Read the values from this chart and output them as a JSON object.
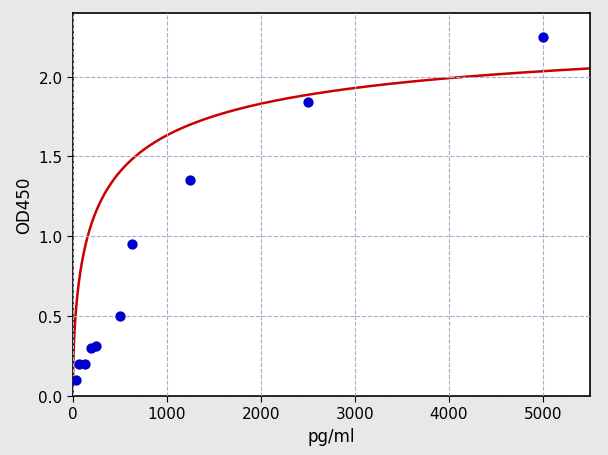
{
  "scatter_x": [
    31.25,
    62.5,
    125,
    187.5,
    250,
    500,
    625,
    1250,
    2500,
    5000
  ],
  "scatter_y": [
    0.1,
    0.2,
    0.2,
    0.3,
    0.31,
    0.5,
    0.95,
    1.35,
    1.84,
    2.25
  ],
  "scatter_color": "#0000cd",
  "scatter_size": 55,
  "curve_color": "#cc0000",
  "curve_linewidth": 1.8,
  "xlabel": "pg/ml",
  "ylabel": "OD450",
  "xlim": [
    0,
    5500
  ],
  "ylim": [
    0.0,
    2.4
  ],
  "xticks": [
    0,
    1000,
    2000,
    3000,
    4000,
    5000
  ],
  "yticks": [
    0.0,
    0.5,
    1.0,
    1.5,
    2.0
  ],
  "grid_color": "#aaaacc",
  "grid_linestyle": "--",
  "figure_background_color": "#e8e8e8",
  "plot_background_color": "#ffffff",
  "xlabel_fontsize": 12,
  "ylabel_fontsize": 12,
  "tick_fontsize": 11,
  "spine_color": "#000000"
}
